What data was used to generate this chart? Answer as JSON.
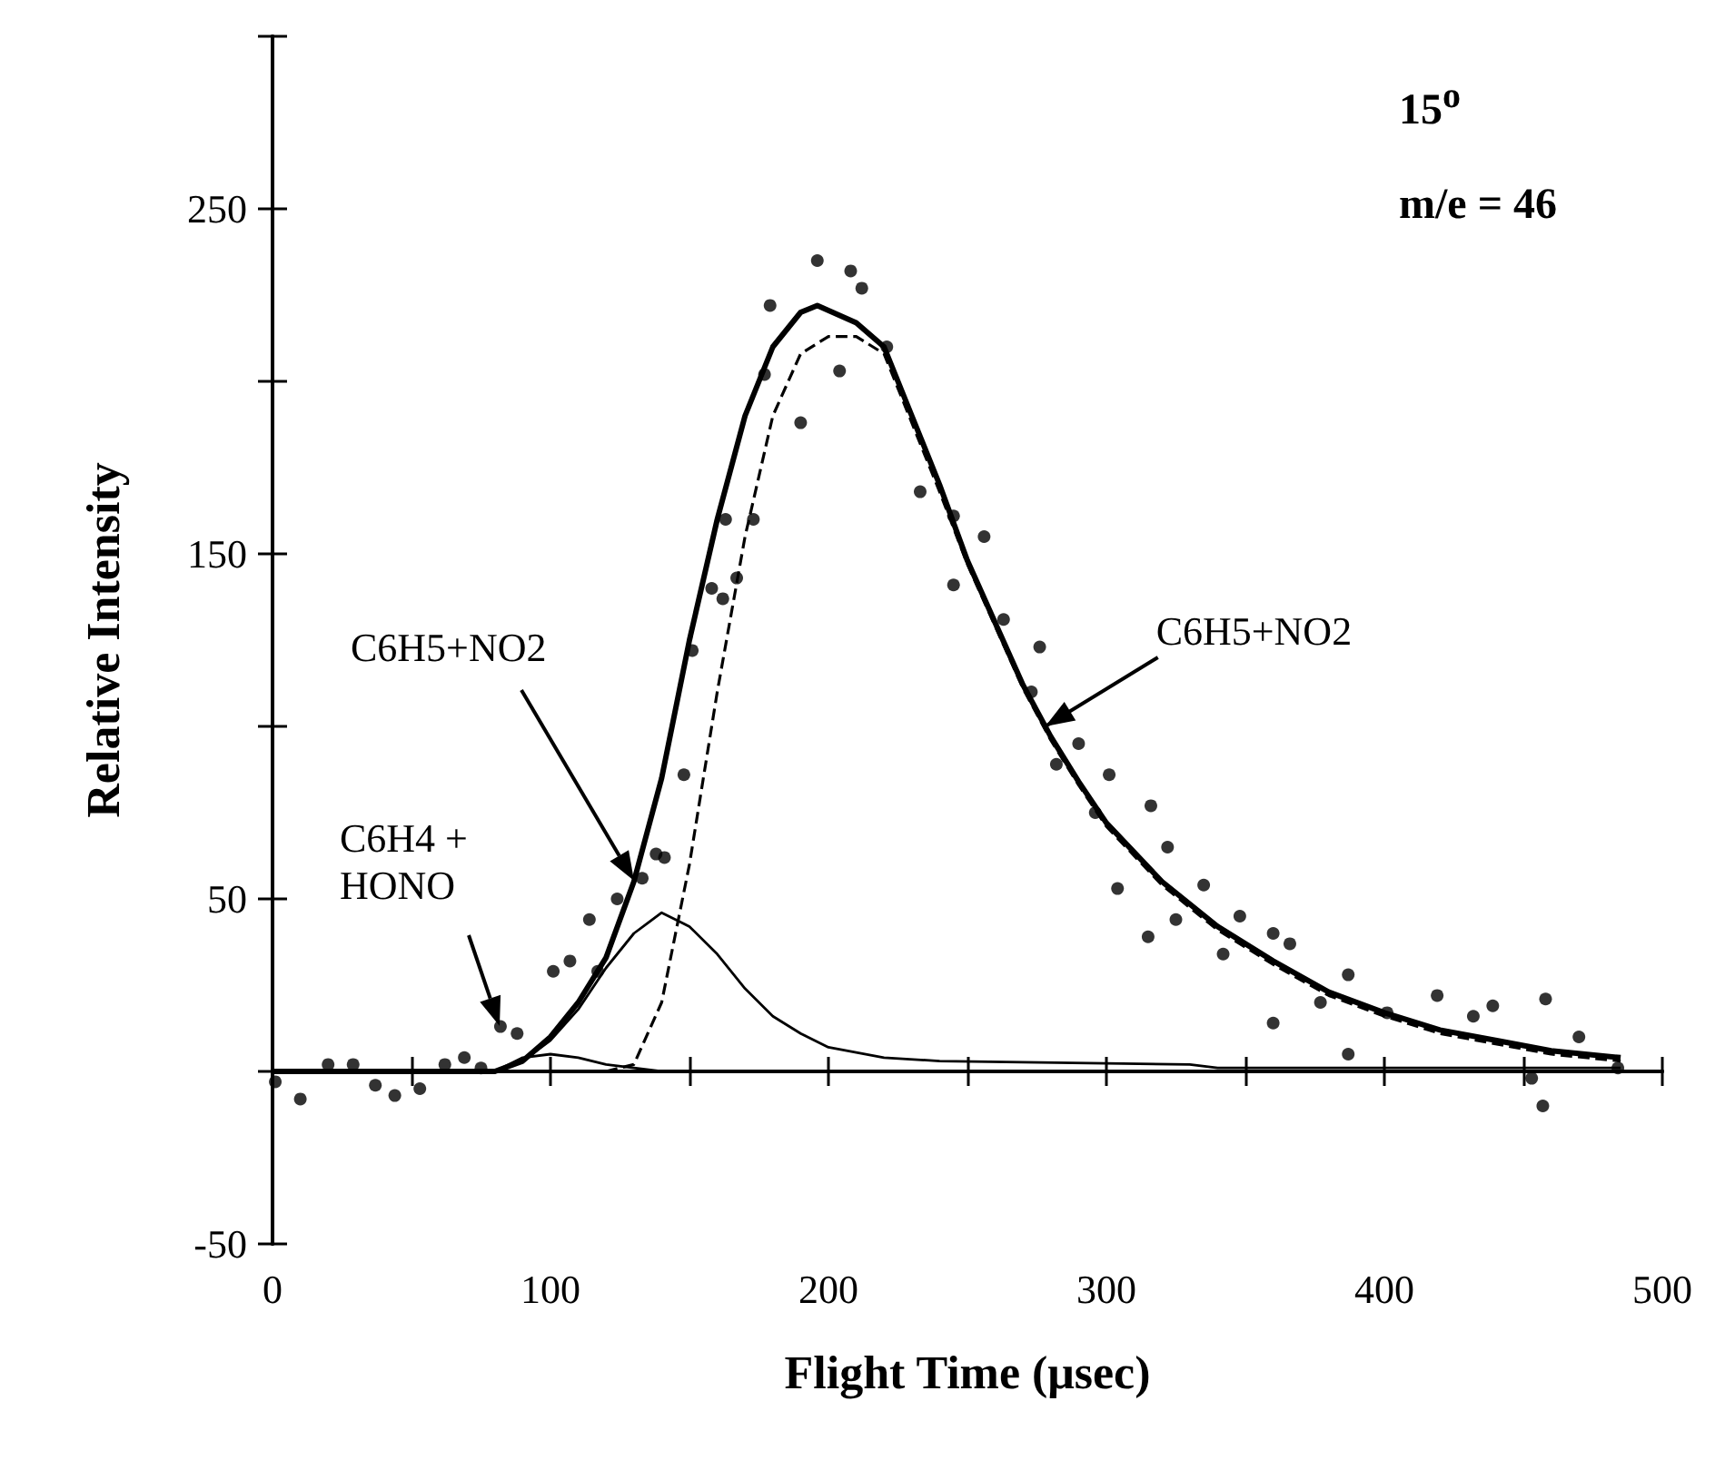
{
  "chart_data": {
    "type": "line",
    "xlabel": "Flight Time (μsec)",
    "ylabel": "Relative Intensity",
    "xlim": [
      0,
      500
    ],
    "ylim": [
      -50,
      300
    ],
    "xticks": [
      0,
      {
        "value": 50,
        "label": null
      },
      100,
      {
        "value": 150,
        "label": null
      },
      200,
      {
        "value": 250,
        "label": null
      },
      300,
      {
        "value": 350,
        "label": null
      },
      400,
      {
        "value": 450,
        "label": null
      },
      500
    ],
    "yticks": [
      -50,
      {
        "value": 0,
        "label": null
      },
      50,
      {
        "value": 100,
        "label": null
      },
      150,
      {
        "value": 200,
        "label": null
      },
      250,
      {
        "value": 300,
        "label": null
      }
    ],
    "annotations": [
      "15$^{o}$",
      "m/e = 46",
      "C6H5+NO2",
      {
        "text": "C6H5+NO2",
        "x": 278,
        "y": 100
      },
      "C6H4 +\nHONO"
    ],
    "series": [
      {
        "type": "scatter",
        "color": "#000000",
        "marker": "circle",
        "x": [
          1,
          10,
          20,
          29,
          37,
          44,
          53,
          62,
          69,
          75,
          82,
          88,
          101,
          107,
          114,
          117,
          124,
          133,
          138,
          141,
          148,
          151,
          158,
          162,
          163,
          167,
          173,
          177,
          179,
          190,
          196,
          204,
          208,
          212,
          221,
          233,
          245,
          245,
          256,
          263,
          273,
          276,
          282,
          290,
          296,
          301,
          304,
          315,
          316,
          322,
          325,
          335,
          342,
          348,
          360,
          360,
          366,
          377,
          387,
          387,
          401,
          419,
          432,
          439,
          453,
          457,
          458,
          470,
          484
        ],
        "values": [
          -3,
          -8,
          2,
          2,
          -4,
          -7,
          -5,
          2,
          4,
          1,
          13,
          11,
          29,
          32,
          44,
          29,
          50,
          56,
          63,
          62,
          86,
          122,
          140,
          137,
          160,
          143,
          160,
          202,
          222,
          188,
          235,
          203,
          232,
          227,
          210,
          168,
          161,
          141,
          155,
          131,
          110,
          123,
          89,
          95,
          75,
          86,
          53,
          39,
          77,
          65,
          44,
          54,
          34,
          45,
          40,
          14,
          37,
          20,
          28,
          5,
          17,
          22,
          16,
          19,
          -2,
          -10,
          21,
          10,
          1
        ]
      },
      {
        "type": "line",
        "color": "#000000",
        "marker": "none",
        "line_style": "solid",
        "x": [
          0,
          80,
          90,
          100,
          110,
          120,
          130,
          140,
          150,
          160,
          170,
          180,
          190,
          196,
          210,
          220,
          230,
          240,
          250,
          260,
          270,
          280,
          290,
          300,
          320,
          340,
          360,
          380,
          400,
          420,
          440,
          460,
          485
        ],
        "values": [
          0,
          0,
          3,
          10,
          20,
          33,
          55,
          85,
          125,
          160,
          190,
          210,
          220,
          222,
          217,
          210,
          190,
          170,
          148,
          130,
          112,
          97,
          84,
          72,
          55,
          42,
          32,
          23,
          17,
          12,
          9,
          6,
          4
        ]
      },
      {
        "type": "line",
        "color": "#000000",
        "marker": "none",
        "line_style": "dashed",
        "x": [
          120,
          130,
          140,
          150,
          160,
          170,
          180,
          190,
          200,
          210,
          220,
          230,
          240,
          250,
          260,
          270,
          280,
          290,
          300,
          320,
          340,
          360,
          380,
          400,
          420,
          440,
          460,
          485
        ],
        "values": [
          0,
          2,
          20,
          60,
          110,
          155,
          190,
          208,
          213,
          213,
          208,
          188,
          168,
          147,
          129,
          111,
          96,
          83,
          71,
          54,
          41,
          31,
          22,
          16,
          11,
          8,
          5,
          3
        ]
      },
      {
        "type": "line",
        "color": "#000000",
        "marker": "none",
        "line_style": "solid",
        "x": [
          80,
          90,
          100,
          110,
          120,
          130,
          140,
          150,
          160,
          170,
          180,
          190,
          200,
          220,
          240,
          330,
          340,
          485
        ],
        "values": [
          0,
          3,
          9,
          18,
          30,
          40,
          46,
          42,
          34,
          24,
          16,
          11,
          7,
          4,
          3,
          2,
          1,
          1
        ]
      },
      {
        "type": "line",
        "color": "#000000",
        "marker": "none",
        "line_style": "solid",
        "x": [
          0,
          80,
          90,
          100,
          110,
          120,
          130,
          140,
          485
        ],
        "values": [
          0,
          0,
          4,
          5,
          4,
          2,
          1,
          0,
          0
        ]
      }
    ]
  }
}
